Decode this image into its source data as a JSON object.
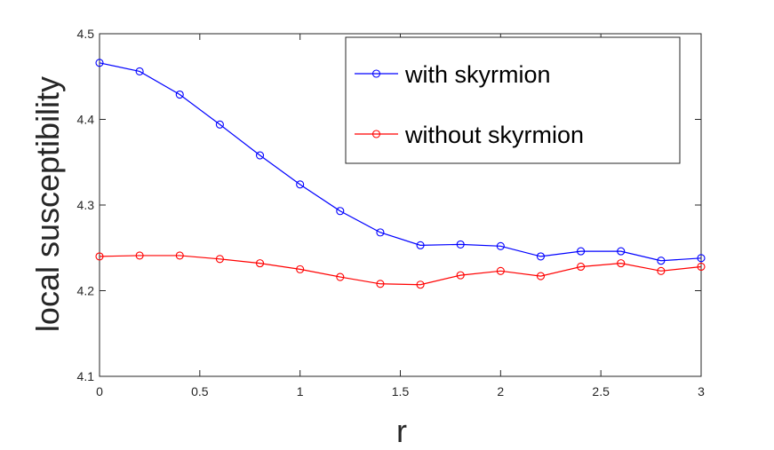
{
  "chart_data": {
    "type": "line",
    "xlabel": "r",
    "ylabel": "local susceptibility",
    "xlim": [
      0,
      3
    ],
    "ylim": [
      4.1,
      4.5
    ],
    "xticks": [
      0,
      0.5,
      1,
      1.5,
      2,
      2.5,
      3
    ],
    "yticks": [
      4.1,
      4.2,
      4.3,
      4.4,
      4.5
    ],
    "xtick_labels": [
      "0",
      "0.5",
      "1",
      "1.5",
      "2",
      "2.5",
      "3"
    ],
    "ytick_labels": [
      "4.1",
      "4.2",
      "4.3",
      "4.4",
      "4.5"
    ],
    "grid": false,
    "legend_position": "top-right",
    "x": [
      0,
      0.2,
      0.4,
      0.6,
      0.8,
      1.0,
      1.2,
      1.4,
      1.6,
      1.8,
      2.0,
      2.2,
      2.4,
      2.6,
      2.8,
      3.0
    ],
    "series": [
      {
        "name": "with skyrmion",
        "color": "#0000ff",
        "marker": "circle",
        "values": [
          4.466,
          4.456,
          4.429,
          4.394,
          4.358,
          4.324,
          4.293,
          4.268,
          4.253,
          4.254,
          4.252,
          4.24,
          4.246,
          4.246,
          4.235,
          4.238
        ]
      },
      {
        "name": "without skyrmion",
        "color": "#ff0000",
        "marker": "circle",
        "values": [
          4.24,
          4.241,
          4.241,
          4.237,
          4.232,
          4.225,
          4.216,
          4.208,
          4.207,
          4.218,
          4.223,
          4.217,
          4.228,
          4.232,
          4.223,
          4.228
        ]
      }
    ]
  }
}
